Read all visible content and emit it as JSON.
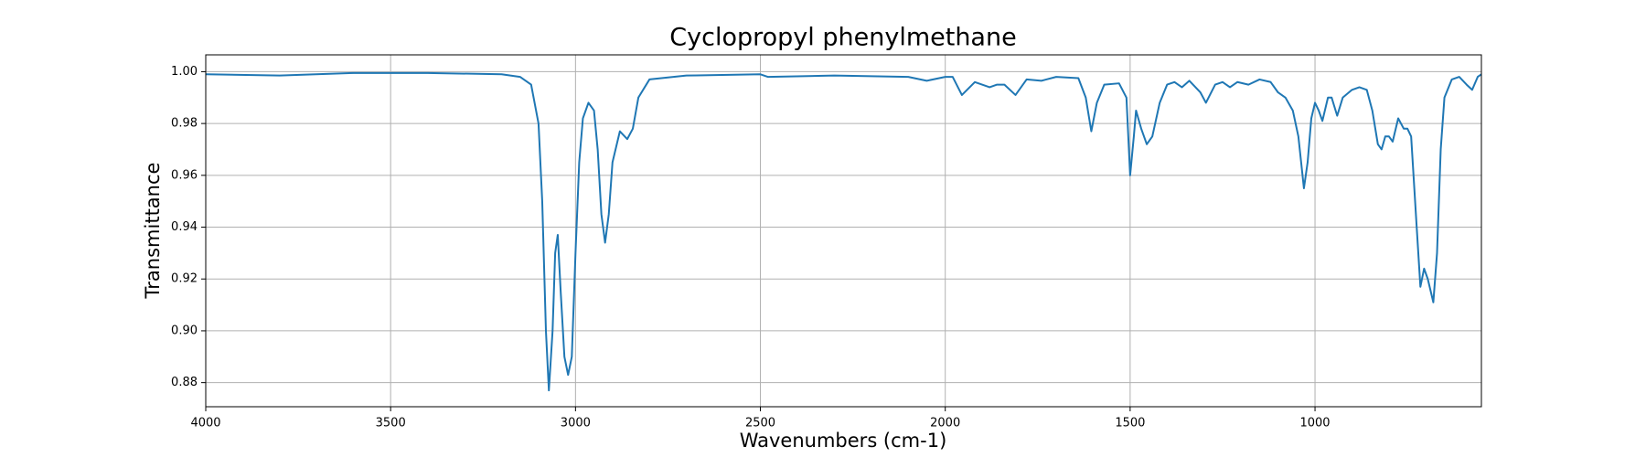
{
  "chart_data": {
    "type": "line",
    "title": "Cyclopropyl phenylmethane",
    "xlabel": "Wavenumbers (cm-1)",
    "ylabel": "Transmittance",
    "color": "#1f77b4",
    "grid": true,
    "xlim": [
      4000,
      550
    ],
    "ylim": [
      0.8707,
      1.0065
    ],
    "xticks": [
      4000,
      3500,
      3000,
      2500,
      2000,
      1500,
      1000
    ],
    "yticks": [
      0.88,
      {
        "value": 0.9,
        "label": "0.90"
      },
      0.92,
      0.94,
      0.96,
      0.98,
      {
        "value": 1.0,
        "label": "1.00"
      }
    ],
    "x": [
      4000,
      3800,
      3600,
      3400,
      3200,
      3150,
      3120,
      3100,
      3090,
      3080,
      3072,
      3062,
      3055,
      3048,
      3040,
      3030,
      3020,
      3010,
      3000,
      2990,
      2980,
      2965,
      2950,
      2940,
      2930,
      2920,
      2910,
      2900,
      2880,
      2860,
      2845,
      2830,
      2800,
      2700,
      2500,
      2480,
      2300,
      2100,
      2050,
      2000,
      1980,
      1955,
      1920,
      1880,
      1860,
      1840,
      1810,
      1780,
      1740,
      1700,
      1640,
      1620,
      1605,
      1590,
      1570,
      1530,
      1510,
      1500,
      1490,
      1484,
      1470,
      1455,
      1440,
      1420,
      1400,
      1380,
      1360,
      1340,
      1310,
      1295,
      1270,
      1250,
      1230,
      1210,
      1180,
      1150,
      1120,
      1100,
      1080,
      1060,
      1045,
      1030,
      1020,
      1010,
      1000,
      990,
      980,
      965,
      955,
      940,
      925,
      900,
      880,
      860,
      845,
      830,
      820,
      810,
      800,
      790,
      775,
      760,
      750,
      740,
      725,
      715,
      705,
      695,
      680,
      670,
      660,
      650,
      630,
      610,
      590,
      575,
      560,
      550
    ],
    "values": [
      0.999,
      0.9985,
      0.9995,
      0.9995,
      0.999,
      0.998,
      0.995,
      0.98,
      0.95,
      0.9,
      0.877,
      0.9,
      0.93,
      0.937,
      0.915,
      0.89,
      0.883,
      0.89,
      0.93,
      0.965,
      0.982,
      0.988,
      0.985,
      0.97,
      0.945,
      0.934,
      0.945,
      0.965,
      0.977,
      0.974,
      0.978,
      0.99,
      0.997,
      0.9985,
      0.999,
      0.998,
      0.9985,
      0.998,
      0.9965,
      0.998,
      0.998,
      0.991,
      0.996,
      0.994,
      0.995,
      0.995,
      0.991,
      0.997,
      0.9965,
      0.998,
      0.9975,
      0.99,
      0.977,
      0.988,
      0.995,
      0.9955,
      0.99,
      0.96,
      0.975,
      0.985,
      0.978,
      0.972,
      0.975,
      0.988,
      0.995,
      0.996,
      0.994,
      0.9965,
      0.992,
      0.988,
      0.995,
      0.996,
      0.994,
      0.996,
      0.995,
      0.997,
      0.996,
      0.992,
      0.99,
      0.985,
      0.975,
      0.955,
      0.965,
      0.982,
      0.988,
      0.985,
      0.981,
      0.99,
      0.99,
      0.983,
      0.99,
      0.993,
      0.994,
      0.993,
      0.985,
      0.972,
      0.97,
      0.975,
      0.975,
      0.973,
      0.982,
      0.978,
      0.978,
      0.975,
      0.94,
      0.917,
      0.924,
      0.92,
      0.911,
      0.93,
      0.97,
      0.99,
      0.997,
      0.998,
      0.995,
      0.993,
      0.998,
      0.999
    ]
  }
}
